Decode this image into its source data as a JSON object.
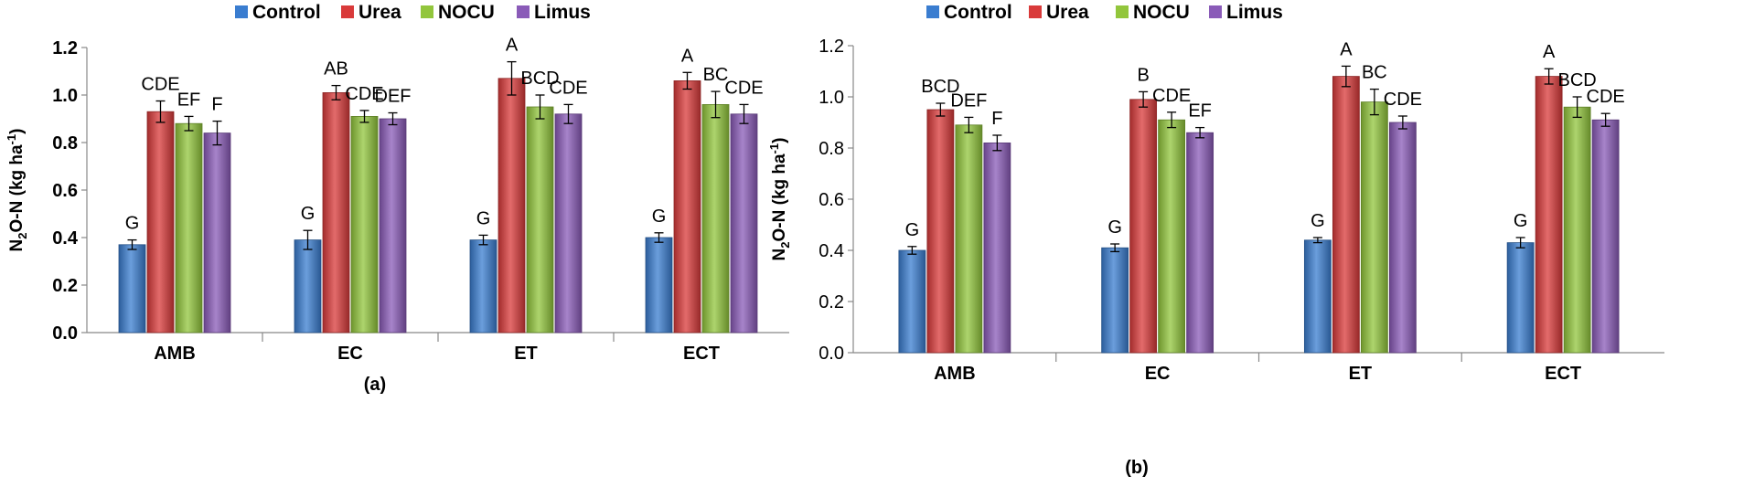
{
  "colors": {
    "Control": "#3a7dd0",
    "Urea": "#d93a3a",
    "NOCU": "#92c63c",
    "Limus": "#8a5bb8"
  },
  "chart_data": [
    {
      "type": "bar",
      "panel_label": "(a)",
      "ylabel": "N2O-N (kg ha-1)",
      "ylabel_parts": {
        "pre": "N",
        "sub": "2",
        "mid": "O-N (kg ha",
        "sup": "-1",
        "post": ")"
      },
      "ylim": [
        0,
        1.2
      ],
      "yticks": [
        "0.0",
        "0.2",
        "0.4",
        "0.6",
        "0.8",
        "1.0",
        "1.2"
      ],
      "ytick_values": [
        0,
        0.2,
        0.4,
        0.6,
        0.8,
        1.0,
        1.2
      ],
      "categories": [
        "AMB",
        "EC",
        "ET",
        "ECT"
      ],
      "legend": [
        "Control",
        "Urea",
        "NOCU",
        "Limus"
      ],
      "series": [
        {
          "name": "Control",
          "values": [
            0.37,
            0.39,
            0.39,
            0.4
          ],
          "errors": [
            0.02,
            0.04,
            0.02,
            0.02
          ],
          "labels": [
            "G",
            "G",
            "G",
            "G"
          ]
        },
        {
          "name": "Urea",
          "values": [
            0.93,
            1.01,
            1.07,
            1.06
          ],
          "errors": [
            0.045,
            0.03,
            0.07,
            0.035
          ],
          "labels": [
            "CDE",
            "AB",
            "A",
            "A"
          ]
        },
        {
          "name": "NOCU",
          "values": [
            0.88,
            0.91,
            0.95,
            0.96
          ],
          "errors": [
            0.03,
            0.025,
            0.05,
            0.055
          ],
          "labels": [
            "EF",
            "CDE",
            "BCD",
            "BC"
          ]
        },
        {
          "name": "Limus",
          "values": [
            0.84,
            0.9,
            0.92,
            0.92
          ],
          "errors": [
            0.05,
            0.025,
            0.04,
            0.04
          ],
          "labels": [
            "F",
            "DEF",
            "CDE",
            "CDE"
          ]
        }
      ]
    },
    {
      "type": "bar",
      "panel_label": "(b)",
      "ylabel": "N2O-N (kg ha-1)",
      "ylabel_parts": {
        "pre": "N",
        "sub": "2",
        "mid": "O-N (kg ha",
        "sup": "-1",
        "post": ")"
      },
      "ylim": [
        0,
        1.2
      ],
      "yticks": [
        "0.0",
        "0.2",
        "0.4",
        "0.6",
        "0.8",
        "1.0",
        "1.2"
      ],
      "ytick_values": [
        0,
        0.2,
        0.4,
        0.6,
        0.8,
        1.0,
        1.2
      ],
      "categories": [
        "AMB",
        "EC",
        "ET",
        "ECT"
      ],
      "legend": [
        "Control",
        "Urea",
        "NOCU",
        "Limus"
      ],
      "series": [
        {
          "name": "Control",
          "values": [
            0.4,
            0.41,
            0.44,
            0.43
          ],
          "errors": [
            0.015,
            0.015,
            0.01,
            0.02
          ],
          "labels": [
            "G",
            "G",
            "G",
            "G"
          ]
        },
        {
          "name": "Urea",
          "values": [
            0.95,
            0.99,
            1.08,
            1.08
          ],
          "errors": [
            0.025,
            0.03,
            0.04,
            0.03
          ],
          "labels": [
            "BCD",
            "B",
            "A",
            "A"
          ]
        },
        {
          "name": "NOCU",
          "values": [
            0.89,
            0.91,
            0.98,
            0.96
          ],
          "errors": [
            0.03,
            0.03,
            0.05,
            0.04
          ],
          "labels": [
            "DEF",
            "CDE",
            "BC",
            "BCD"
          ]
        },
        {
          "name": "Limus",
          "values": [
            0.82,
            0.86,
            0.9,
            0.91
          ],
          "errors": [
            0.03,
            0.02,
            0.025,
            0.025
          ],
          "labels": [
            "F",
            "EF",
            "CDE",
            "CDE"
          ]
        }
      ]
    }
  ]
}
